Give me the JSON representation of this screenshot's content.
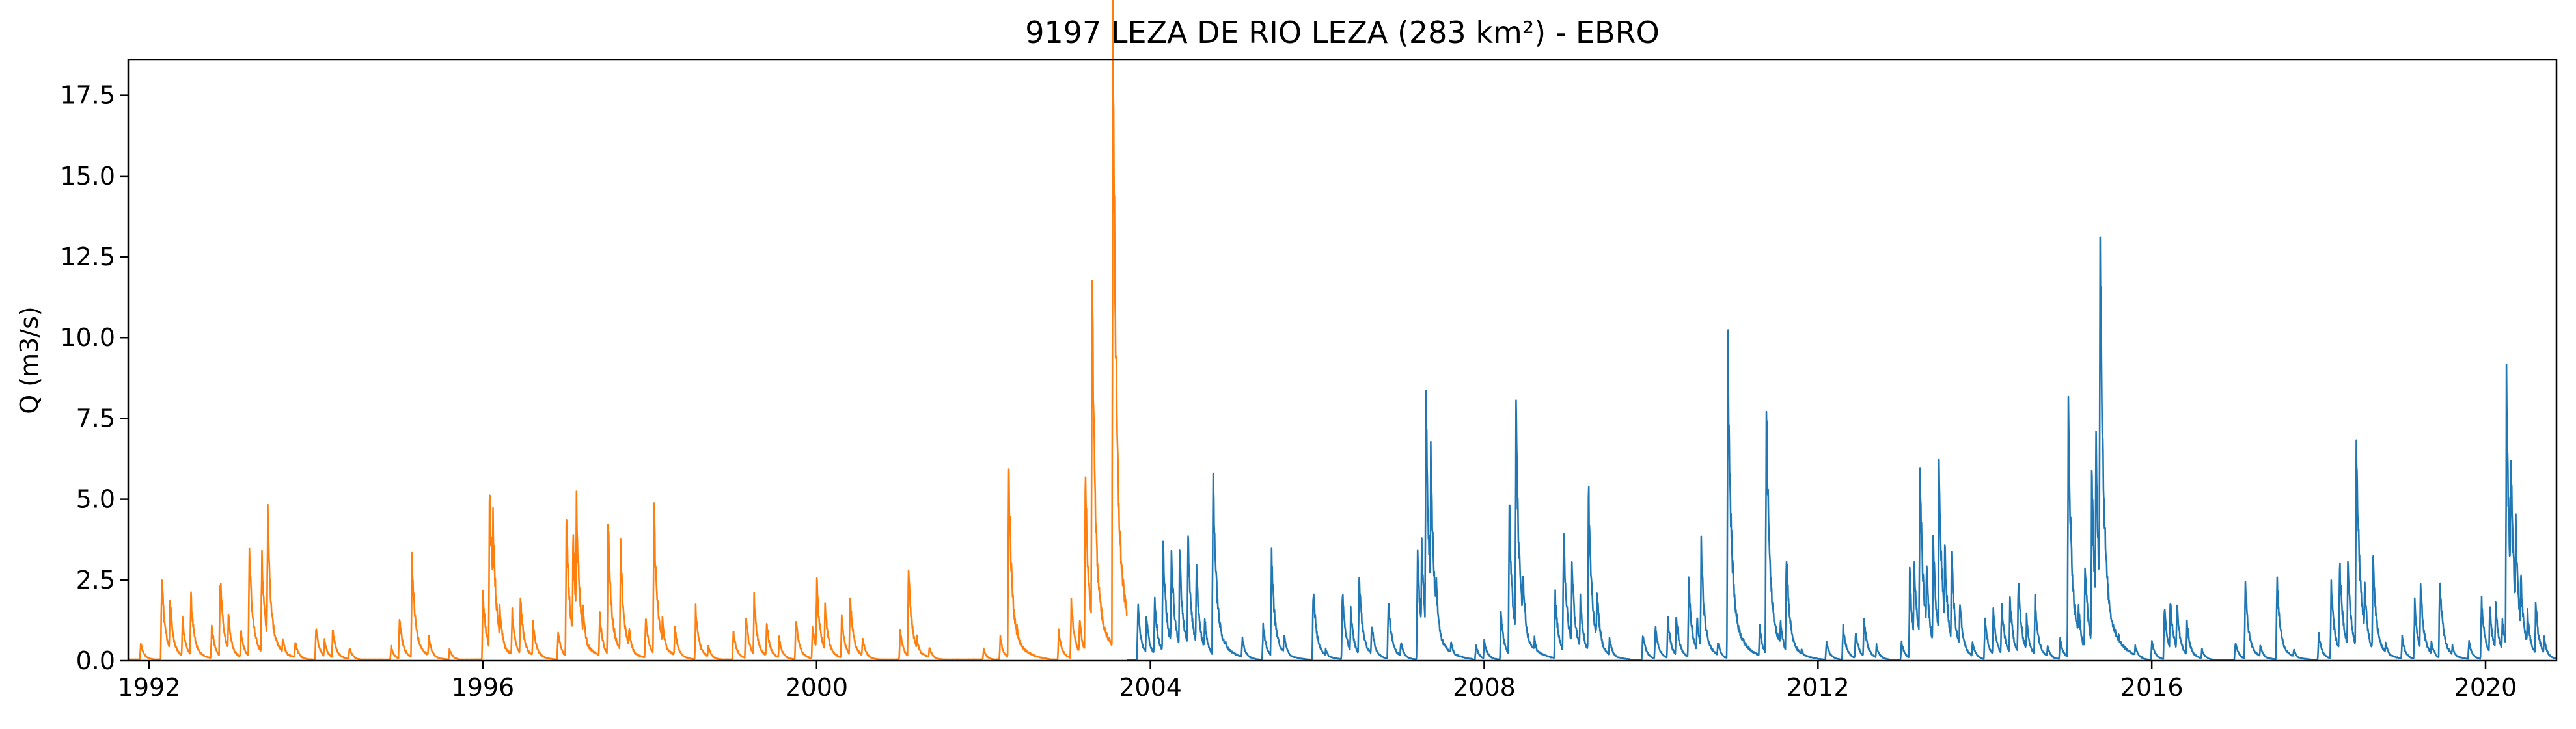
{
  "chart_data": {
    "type": "line",
    "title": "9197 LEZA DE RIO LEZA (283 km²) - EBRO",
    "xlabel": "",
    "ylabel": "Q (m3/s)",
    "xlim": [
      1991.75,
      2020.85
    ],
    "ylim": [
      0,
      18.6
    ],
    "x_ticks": [
      1992,
      1996,
      2000,
      2004,
      2008,
      2012,
      2016,
      2020
    ],
    "y_ticks": [
      0.0,
      2.5,
      5.0,
      7.5,
      10.0,
      12.5,
      15.0,
      17.5
    ],
    "y_tick_labels": [
      "0.0",
      "2.5",
      "5.0",
      "7.5",
      "10.0",
      "12.5",
      "15.0",
      "17.5"
    ],
    "x_tick_labels": [
      "1992",
      "1996",
      "2000",
      "2004",
      "2008",
      "2012",
      "2016",
      "2020"
    ],
    "grid": false,
    "legend": "none",
    "series": [
      {
        "color": "#ff7f0e",
        "x_start": 1991.75,
        "x_end": 2003.72,
        "baseline": 0.04,
        "peaks": [
          [
            1991.9,
            0.45
          ],
          [
            1992.15,
            2.25
          ],
          [
            1992.25,
            1.6
          ],
          [
            1992.4,
            1.1
          ],
          [
            1992.5,
            1.7
          ],
          [
            1992.75,
            0.9
          ],
          [
            1992.85,
            2.25
          ],
          [
            1992.95,
            1.2
          ],
          [
            1993.1,
            0.8
          ],
          [
            1993.2,
            2.95
          ],
          [
            1993.35,
            2.75
          ],
          [
            1993.42,
            3.9
          ],
          [
            1993.6,
            0.6
          ],
          [
            1993.75,
            0.5
          ],
          [
            1994.0,
            0.85
          ],
          [
            1994.1,
            0.55
          ],
          [
            1994.2,
            0.85
          ],
          [
            1994.4,
            0.35
          ],
          [
            1994.9,
            0.35
          ],
          [
            1995.0,
            1.15
          ],
          [
            1995.15,
            2.7
          ],
          [
            1995.35,
            0.65
          ],
          [
            1995.6,
            0.3
          ],
          [
            1996.0,
            1.8
          ],
          [
            1996.08,
            4.85
          ],
          [
            1996.12,
            3.8
          ],
          [
            1996.2,
            1.5
          ],
          [
            1996.35,
            1.3
          ],
          [
            1996.45,
            1.65
          ],
          [
            1996.6,
            1.0
          ],
          [
            1996.9,
            0.8
          ],
          [
            1997.0,
            3.7
          ],
          [
            1997.08,
            3.25
          ],
          [
            1997.12,
            4.35
          ],
          [
            1997.2,
            1.4
          ],
          [
            1997.4,
            1.2
          ],
          [
            1997.5,
            3.6
          ],
          [
            1997.65,
            2.9
          ],
          [
            1997.75,
            0.9
          ],
          [
            1997.95,
            1.2
          ],
          [
            1998.05,
            3.9
          ],
          [
            1998.15,
            1.1
          ],
          [
            1998.3,
            0.9
          ],
          [
            1998.55,
            1.35
          ],
          [
            1998.7,
            0.4
          ],
          [
            1999.0,
            0.8
          ],
          [
            1999.15,
            1.2
          ],
          [
            1999.25,
            1.6
          ],
          [
            1999.4,
            1.0
          ],
          [
            1999.55,
            0.6
          ],
          [
            1999.75,
            1.1
          ],
          [
            1999.95,
            0.9
          ],
          [
            2000.0,
            2.1
          ],
          [
            2000.1,
            1.5
          ],
          [
            2000.3,
            1.1
          ],
          [
            2000.4,
            1.7
          ],
          [
            2000.55,
            0.6
          ],
          [
            2001.0,
            0.8
          ],
          [
            2001.1,
            2.5
          ],
          [
            2001.2,
            0.6
          ],
          [
            2001.35,
            0.35
          ],
          [
            2002.0,
            0.3
          ],
          [
            2002.2,
            0.6
          ],
          [
            2002.3,
            5.0
          ],
          [
            2002.4,
            0.9
          ],
          [
            2002.9,
            0.8
          ],
          [
            2003.05,
            1.6
          ],
          [
            2003.15,
            1.1
          ],
          [
            2003.22,
            5.0
          ],
          [
            2003.3,
            10.15
          ],
          [
            2003.4,
            1.4
          ],
          [
            2003.55,
            17.75
          ],
          [
            2003.65,
            0.8
          ]
        ]
      },
      {
        "color": "#1f77b4",
        "x_start": 2003.72,
        "x_end": 2020.85,
        "baseline": 0.03,
        "peaks": [
          [
            2003.85,
            1.4
          ],
          [
            2003.95,
            1.2
          ],
          [
            2004.05,
            1.6
          ],
          [
            2004.15,
            3.2
          ],
          [
            2004.25,
            2.9
          ],
          [
            2004.35,
            2.8
          ],
          [
            2004.45,
            3.3
          ],
          [
            2004.55,
            2.4
          ],
          [
            2004.65,
            1.1
          ],
          [
            2004.75,
            5.0
          ],
          [
            2004.9,
            0.5
          ],
          [
            2005.1,
            0.6
          ],
          [
            2005.35,
            0.9
          ],
          [
            2005.45,
            2.8
          ],
          [
            2005.6,
            0.7
          ],
          [
            2005.95,
            1.9
          ],
          [
            2006.1,
            0.3
          ],
          [
            2006.3,
            1.8
          ],
          [
            2006.4,
            1.3
          ],
          [
            2006.5,
            2.3
          ],
          [
            2006.65,
            1.0
          ],
          [
            2006.85,
            1.6
          ],
          [
            2007.0,
            0.5
          ],
          [
            2007.2,
            2.8
          ],
          [
            2007.25,
            3.0
          ],
          [
            2007.3,
            7.0
          ],
          [
            2007.36,
            5.5
          ],
          [
            2007.42,
            2.3
          ],
          [
            2007.6,
            0.5
          ],
          [
            2007.9,
            0.4
          ],
          [
            2008.0,
            0.5
          ],
          [
            2008.2,
            1.2
          ],
          [
            2008.3,
            4.05
          ],
          [
            2008.38,
            6.65
          ],
          [
            2008.46,
            2.5
          ],
          [
            2008.6,
            0.6
          ],
          [
            2008.85,
            1.7
          ],
          [
            2008.95,
            3.4
          ],
          [
            2009.05,
            2.6
          ],
          [
            2009.15,
            1.7
          ],
          [
            2009.25,
            4.4
          ],
          [
            2009.35,
            1.9
          ],
          [
            2009.5,
            0.6
          ],
          [
            2009.9,
            0.7
          ],
          [
            2010.05,
            0.9
          ],
          [
            2010.2,
            1.1
          ],
          [
            2010.3,
            1.2
          ],
          [
            2010.45,
            2.0
          ],
          [
            2010.55,
            1.1
          ],
          [
            2010.6,
            2.95
          ],
          [
            2010.8,
            0.5
          ],
          [
            2010.92,
            8.35
          ],
          [
            2011.0,
            0.5
          ],
          [
            2011.1,
            0.4
          ],
          [
            2011.3,
            0.9
          ],
          [
            2011.38,
            6.8
          ],
          [
            2011.45,
            1.6
          ],
          [
            2011.55,
            1.1
          ],
          [
            2011.62,
            2.95
          ],
          [
            2011.8,
            0.3
          ],
          [
            2012.1,
            0.5
          ],
          [
            2012.3,
            0.9
          ],
          [
            2012.45,
            0.8
          ],
          [
            2012.55,
            1.1
          ],
          [
            2012.7,
            0.4
          ],
          [
            2013.0,
            0.5
          ],
          [
            2013.1,
            2.2
          ],
          [
            2013.15,
            2.7
          ],
          [
            2013.22,
            5.15
          ],
          [
            2013.3,
            2.5
          ],
          [
            2013.38,
            3.2
          ],
          [
            2013.45,
            4.9
          ],
          [
            2013.52,
            2.9
          ],
          [
            2013.6,
            2.8
          ],
          [
            2013.7,
            1.6
          ],
          [
            2013.85,
            0.5
          ],
          [
            2014.0,
            1.1
          ],
          [
            2014.1,
            1.3
          ],
          [
            2014.2,
            1.5
          ],
          [
            2014.3,
            1.6
          ],
          [
            2014.4,
            2.1
          ],
          [
            2014.5,
            1.1
          ],
          [
            2014.6,
            1.6
          ],
          [
            2014.75,
            0.4
          ],
          [
            2014.9,
            0.6
          ],
          [
            2015.0,
            6.55
          ],
          [
            2015.12,
            1.5
          ],
          [
            2015.2,
            2.6
          ],
          [
            2015.28,
            4.9
          ],
          [
            2015.33,
            5.7
          ],
          [
            2015.38,
            11.75
          ],
          [
            2015.45,
            2.0
          ],
          [
            2015.6,
            0.7
          ],
          [
            2015.8,
            0.4
          ],
          [
            2016.0,
            0.5
          ],
          [
            2016.15,
            1.4
          ],
          [
            2016.22,
            1.65
          ],
          [
            2016.3,
            1.5
          ],
          [
            2016.42,
            1.0
          ],
          [
            2016.6,
            0.3
          ],
          [
            2017.0,
            0.5
          ],
          [
            2017.12,
            2.0
          ],
          [
            2017.3,
            0.4
          ],
          [
            2017.5,
            2.15
          ],
          [
            2017.7,
            0.3
          ],
          [
            2018.0,
            0.7
          ],
          [
            2018.15,
            2.0
          ],
          [
            2018.25,
            2.7
          ],
          [
            2018.35,
            2.6
          ],
          [
            2018.45,
            6.1
          ],
          [
            2018.55,
            2.0
          ],
          [
            2018.65,
            2.8
          ],
          [
            2018.8,
            0.5
          ],
          [
            2019.0,
            0.6
          ],
          [
            2019.15,
            1.5
          ],
          [
            2019.22,
            2.0
          ],
          [
            2019.35,
            0.5
          ],
          [
            2019.45,
            2.2
          ],
          [
            2019.6,
            0.4
          ],
          [
            2019.8,
            0.5
          ],
          [
            2019.95,
            1.6
          ],
          [
            2020.05,
            1.4
          ],
          [
            2020.12,
            1.5
          ],
          [
            2020.2,
            1.1
          ],
          [
            2020.25,
            7.05
          ],
          [
            2020.3,
            5.6
          ],
          [
            2020.36,
            3.6
          ],
          [
            2020.42,
            2.3
          ],
          [
            2020.5,
            1.3
          ],
          [
            2020.6,
            1.5
          ],
          [
            2020.7,
            0.6
          ]
        ]
      }
    ]
  }
}
